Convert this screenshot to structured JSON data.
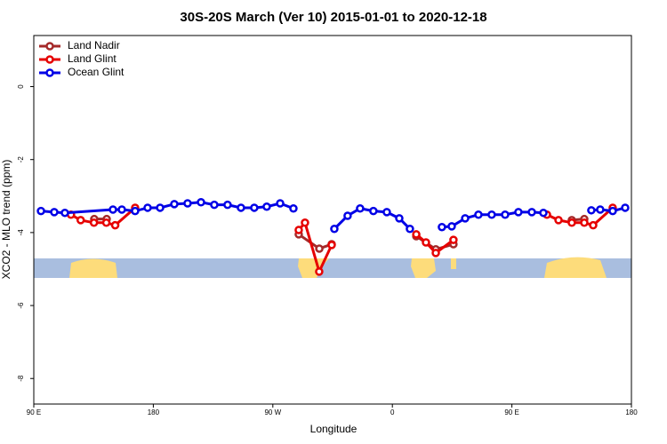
{
  "chart_data": {
    "type": "line",
    "title": "30S-20S March (Ver 10)   2015-01-01 to 2020-12-18",
    "x_label": "Longitude",
    "y_label": "XCO2 - MLO trend (ppm)",
    "xlim": [
      90,
      540
    ],
    "xticks": [
      {
        "value": 90,
        "label": "90 E"
      },
      {
        "value": 180,
        "label": "180"
      },
      {
        "value": 270,
        "label": "90 W"
      },
      {
        "value": 360,
        "label": "0"
      },
      {
        "value": 450,
        "label": "90 E"
      },
      {
        "value": 540,
        "label": "180"
      }
    ],
    "ylim": [
      -8.7,
      1.4
    ],
    "yticks": [
      0,
      -2,
      -4,
      -6,
      -8
    ],
    "legend": "top-left",
    "series": [
      {
        "name": "Land Nadir",
        "color": "#a52a2a",
        "x": [
          135.5,
          144.9,
          null,
          289.5,
          305,
          314.3,
          null,
          378,
          392.7,
          406,
          null,
          495.1,
          504.5
        ],
        "values": [
          -3.63,
          -3.63,
          null,
          -4.05,
          -4.44,
          -4.32,
          null,
          -4.1,
          -4.46,
          -4.32,
          null,
          -3.66,
          -3.63
        ]
      },
      {
        "name": "Land Glint",
        "color": "#e60000",
        "x": [
          118,
          125.3,
          135.3,
          144.6,
          151.3,
          166.3,
          null,
          289.5,
          294.2,
          304.9,
          314.3,
          null,
          378,
          385.3,
          392.7,
          406,
          null,
          476.4,
          485.1,
          495.1,
          504.5,
          511.2,
          525.9
        ],
        "values": [
          -3.51,
          -3.66,
          -3.73,
          -3.73,
          -3.8,
          -3.32,
          null,
          -3.93,
          -3.73,
          -5.07,
          -4.34,
          null,
          -4.05,
          -4.27,
          -4.56,
          -4.2,
          null,
          -3.51,
          -3.66,
          -3.73,
          -3.73,
          -3.8,
          -3.32
        ]
      },
      {
        "name": "Ocean Glint",
        "color": "#0000e6",
        "x": [
          95.4,
          105.4,
          113.4,
          149.6,
          156.3,
          166.3,
          175.7,
          185.1,
          195.8,
          205.8,
          215.9,
          225.9,
          235.9,
          246,
          256,
          265.4,
          275.5,
          285.5,
          null,
          316.3,
          326.3,
          335.7,
          345.7,
          355.8,
          365.2,
          373.2,
          null,
          397.3,
          404.7,
          414.8,
          424.8,
          434.8,
          444.9,
          454.9,
          465,
          473.7,
          null,
          509.8,
          516.5,
          525.9,
          535.3
        ],
        "values": [
          -3.41,
          -3.44,
          -3.46,
          -3.37,
          -3.37,
          -3.41,
          -3.32,
          -3.32,
          -3.22,
          -3.2,
          -3.17,
          -3.24,
          -3.24,
          -3.32,
          -3.32,
          -3.29,
          -3.2,
          -3.34,
          null,
          -3.9,
          -3.54,
          -3.34,
          -3.41,
          -3.44,
          -3.61,
          -3.9,
          null,
          -3.85,
          -3.83,
          -3.61,
          -3.51,
          -3.51,
          -3.51,
          -3.44,
          -3.44,
          -3.46,
          null,
          -3.39,
          -3.37,
          -3.41,
          -3.32
        ]
      }
    ]
  }
}
